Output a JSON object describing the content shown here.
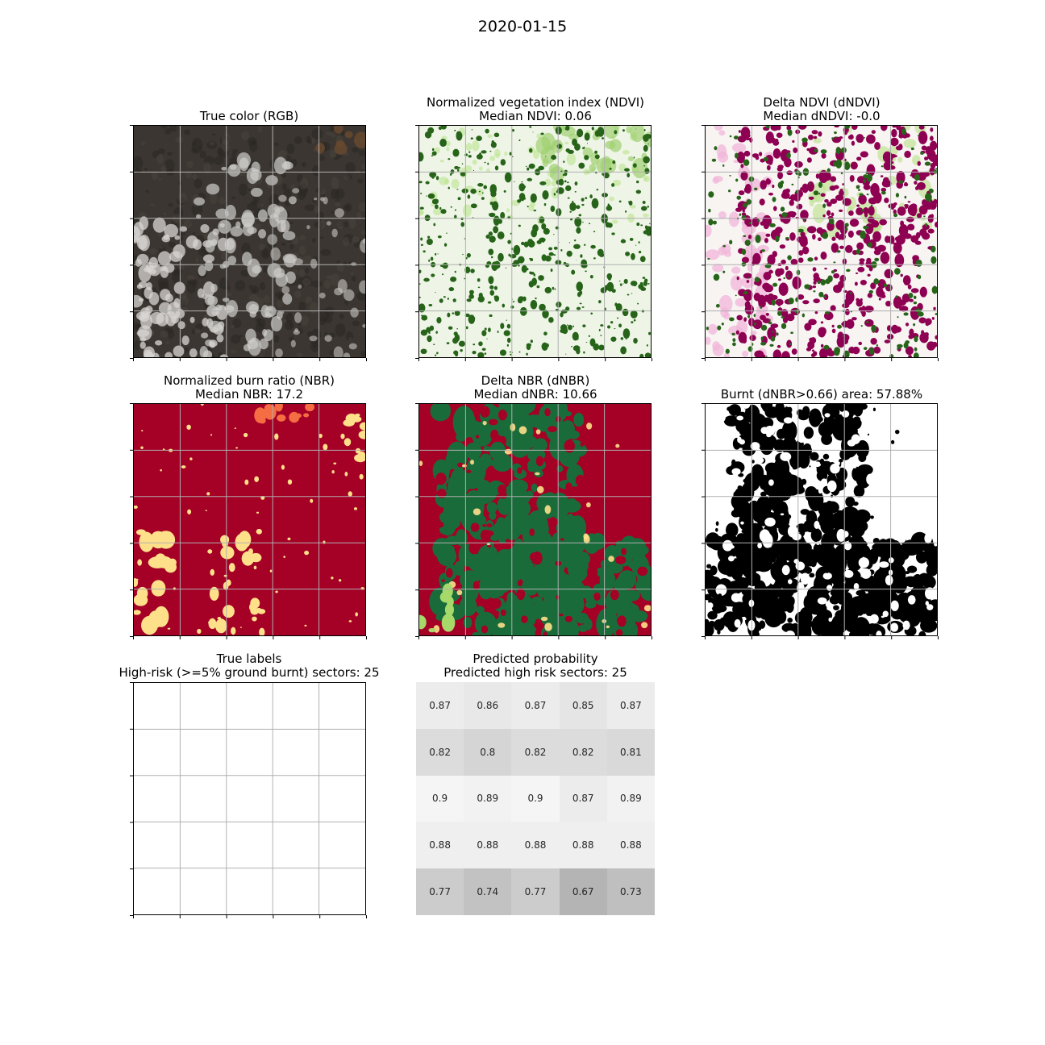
{
  "figure": {
    "suptitle": "2020-01-15"
  },
  "panels": {
    "rgb": {
      "title": "True color (RGB)",
      "subtitle": ""
    },
    "ndvi": {
      "title": "Normalized vegetation index (NDVI)",
      "subtitle": "Median NDVI: 0.06"
    },
    "dndvi": {
      "title": "Delta NDVI (dNDVI)",
      "subtitle": "Median dNDVI: -0.0"
    },
    "nbr": {
      "title": "Normalized burn ratio (NBR)",
      "subtitle": "Median NBR: 17.2"
    },
    "dnbr": {
      "title": "Delta NBR (dNBR)",
      "subtitle": "Median dNBR: 10.66"
    },
    "burnt": {
      "title": "Burnt (dNBR>0.66) area: 57.88%",
      "subtitle": ""
    },
    "labels": {
      "title": "True labels",
      "subtitle": "High-risk (>=5% ground burnt) sectors: 25"
    },
    "pred": {
      "title": "Predicted probability",
      "subtitle": "Predicted high risk sectors: 25"
    }
  },
  "colors": {
    "rgb_base": "#3b3631",
    "ndvi_base": "#eef5e6",
    "ndvi_dark": "#276419",
    "ndvi_light": "#b8e186",
    "dndvi_base": "#f7f4f2",
    "dndvi_magenta": "#8e0152",
    "dndvi_green": "#276419",
    "dndvi_pink": "#f1b6da",
    "nbr_base": "#a50026",
    "nbr_yellow": "#fee08b",
    "nbr_orange": "#f46d43",
    "dnbr_green": "#1a6b3a",
    "burnt_black": "#000000",
    "burnt_white": "#ffffff",
    "grid": "#b0b0b0"
  },
  "chart_data": [
    {
      "type": "heatmap",
      "title": "Predicted probability",
      "subtitle": "Predicted high risk sectors: 25",
      "rows": 5,
      "cols": 5,
      "values": [
        [
          0.87,
          0.86,
          0.87,
          0.85,
          0.87
        ],
        [
          0.82,
          0.8,
          0.82,
          0.82,
          0.81
        ],
        [
          0.9,
          0.89,
          0.9,
          0.87,
          0.89
        ],
        [
          0.88,
          0.88,
          0.88,
          0.88,
          0.88
        ],
        [
          0.77,
          0.74,
          0.77,
          0.67,
          0.73
        ]
      ],
      "labels": [
        [
          "0.87",
          "0.86",
          "0.87",
          "0.85",
          "0.87"
        ],
        [
          "0.82",
          "0.8",
          "0.82",
          "0.82",
          "0.81"
        ],
        [
          "0.9",
          "0.89",
          "0.9",
          "0.87",
          "0.89"
        ],
        [
          "0.88",
          "0.88",
          "0.88",
          "0.88",
          "0.88"
        ],
        [
          "0.77",
          "0.74",
          "0.77",
          "0.67",
          "0.73"
        ]
      ],
      "colormap": "greys"
    },
    {
      "type": "heatmap",
      "title": "True labels",
      "subtitle": "High-risk (>=5% ground burnt) sectors: 25",
      "rows": 5,
      "cols": 5,
      "grid": true
    }
  ]
}
